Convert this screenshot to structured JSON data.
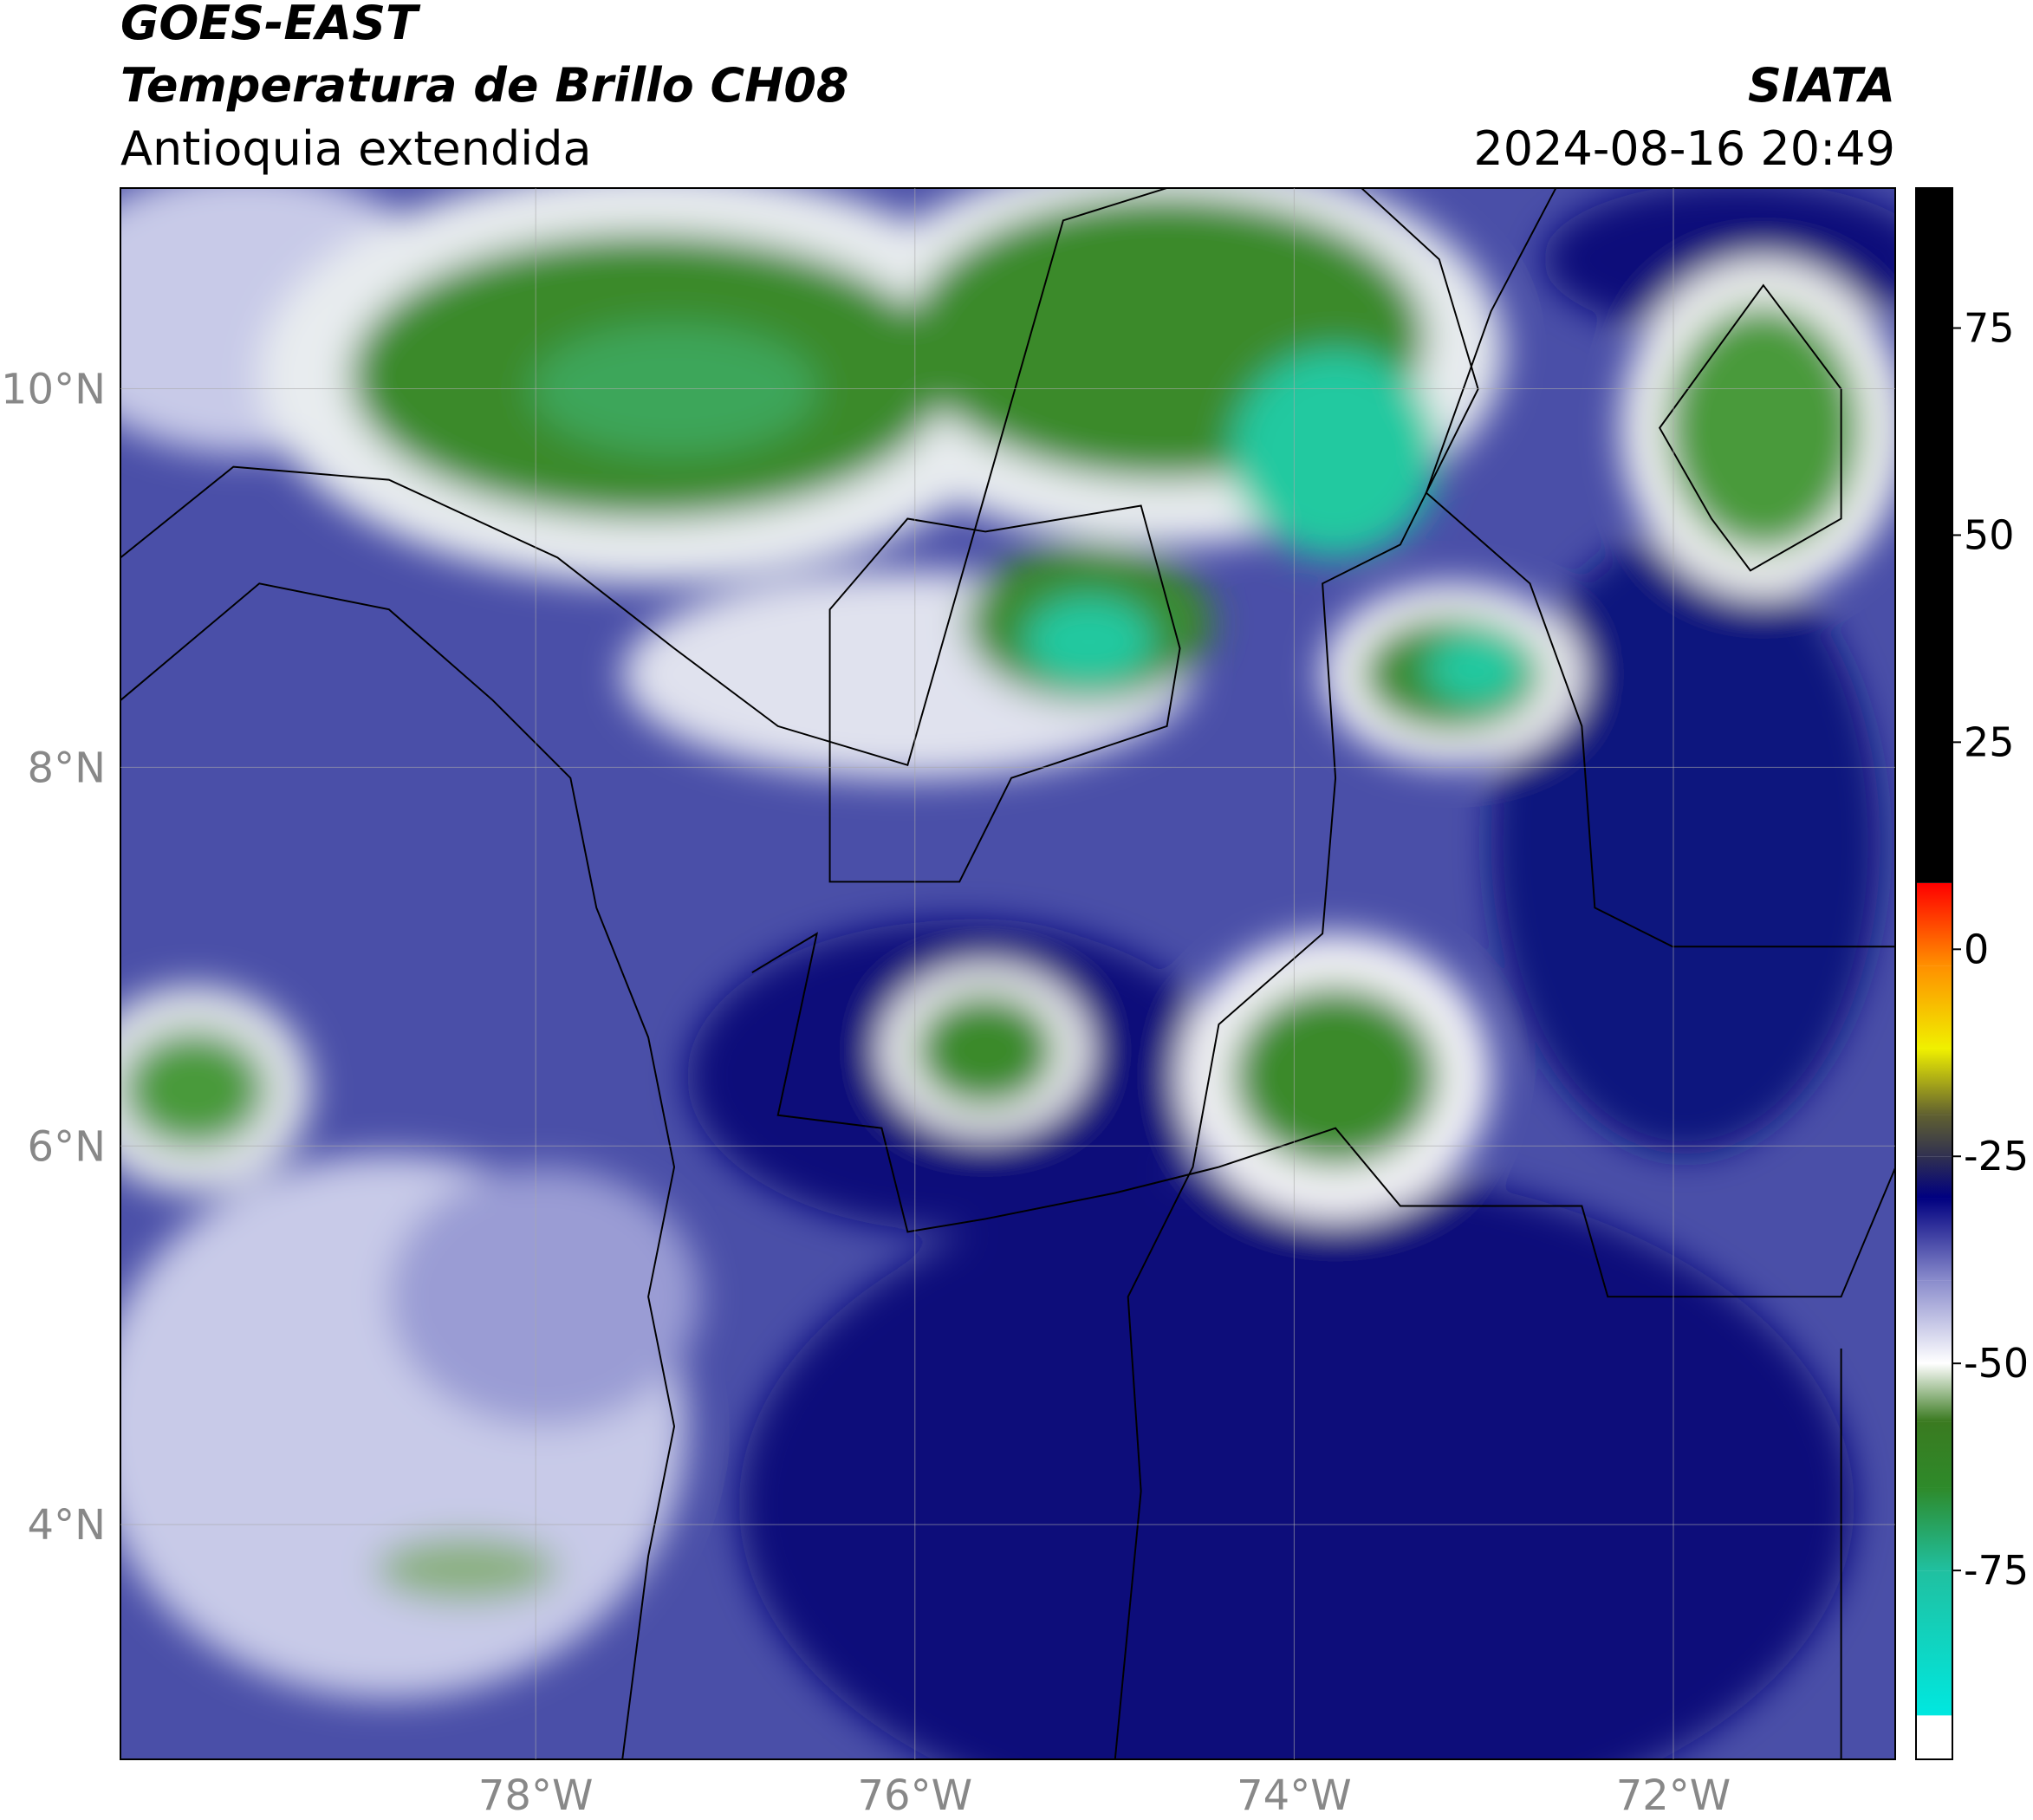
{
  "header": {
    "title": "GOES-EAST",
    "subtitle": "Temperatura de Brillo CH08",
    "region": "Antioquia extendida",
    "source": "SIATA",
    "datetime": "2024-08-16 20:49"
  },
  "map": {
    "xlim": [
      -80.19,
      -70.83
    ],
    "ylim": [
      2.76,
      11.06
    ],
    "xticks": [
      {
        "value": -78,
        "label": "78°W"
      },
      {
        "value": -76,
        "label": "76°W"
      },
      {
        "value": -74,
        "label": "74°W"
      },
      {
        "value": -72,
        "label": "72°W"
      }
    ],
    "yticks": [
      {
        "value": 4,
        "label": "4°N"
      },
      {
        "value": 6,
        "label": "6°N"
      },
      {
        "value": 8,
        "label": "8°N"
      },
      {
        "value": 10,
        "label": "10°N"
      }
    ],
    "grid": true
  },
  "colorbar": {
    "lim": [
      -97.8,
      91.9
    ],
    "ticks": [
      -75,
      -50,
      -25,
      0,
      25,
      50,
      75
    ],
    "stops": [
      {
        "value": -97.8,
        "color": "#ffffff"
      },
      {
        "value": -92.5,
        "color": "#ffffff"
      },
      {
        "value": -92.5,
        "color": "#00e8e0"
      },
      {
        "value": -75,
        "color": "#20c0a0"
      },
      {
        "value": -65,
        "color": "#2e8a2a"
      },
      {
        "value": -57,
        "color": "#3a7a20"
      },
      {
        "value": -50,
        "color": "#ffffff"
      },
      {
        "value": -40,
        "color": "#8a8ccc"
      },
      {
        "value": -30,
        "color": "#000080"
      },
      {
        "value": -25,
        "color": "#303050"
      },
      {
        "value": -20,
        "color": "#606030"
      },
      {
        "value": -12,
        "color": "#f0f000"
      },
      {
        "value": -2,
        "color": "#ff9000"
      },
      {
        "value": 8,
        "color": "#ff0000"
      },
      {
        "value": 8,
        "color": "#000000"
      },
      {
        "value": 91.9,
        "color": "#000000"
      }
    ]
  }
}
